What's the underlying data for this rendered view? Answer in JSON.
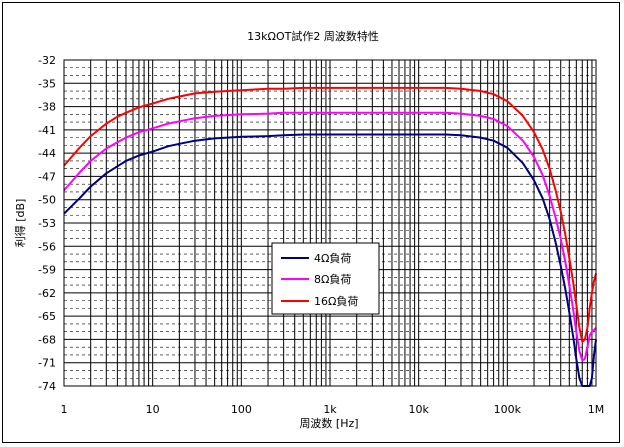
{
  "chart_data": {
    "type": "line",
    "title": "13kΩOT試作2 周波数特性",
    "xlabel": "周波数 [Hz]",
    "ylabel": "利得 [dB]",
    "xscale": "log",
    "xlim": [
      1,
      1000000
    ],
    "ylim": [
      -74,
      -32
    ],
    "y_ticks": [
      -32,
      -35,
      -38,
      -41,
      -44,
      -47,
      -50,
      -53,
      -56,
      -59,
      -62,
      -65,
      -68,
      -71,
      -74
    ],
    "y_tick_labels": [
      "-32",
      "-35",
      "-38",
      "-41",
      "-44",
      "-47",
      "-50",
      "-53",
      "-56",
      "-59",
      "-62",
      "-65",
      "-68",
      "-71",
      "-74"
    ],
    "x_ticks": [
      1,
      10,
      100,
      1000,
      10000,
      100000,
      1000000
    ],
    "x_tick_labels": [
      "1",
      "10",
      "100",
      "1k",
      "10k",
      "100k",
      "1M"
    ],
    "grid": true,
    "legend_position": "center",
    "series": [
      {
        "name": "4Ω負荷",
        "color": "#000080",
        "x": [
          1,
          1.5,
          2,
          3,
          4,
          5,
          7,
          10,
          15,
          20,
          30,
          50,
          70,
          100,
          200,
          300,
          500,
          1000,
          3000,
          10000,
          20000,
          30000,
          50000,
          70000,
          100000,
          150000,
          200000,
          250000,
          300000,
          350000,
          400000,
          450000,
          500000,
          550000,
          600000,
          650000,
          700000,
          750000,
          800000,
          850000,
          900000,
          950000,
          1000000
        ],
        "y": [
          -51.8,
          -49.8,
          -48.3,
          -46.6,
          -45.7,
          -45.0,
          -44.3,
          -43.8,
          -43.1,
          -42.8,
          -42.4,
          -42.1,
          -42.0,
          -41.9,
          -41.8,
          -41.7,
          -41.6,
          -41.6,
          -41.6,
          -41.6,
          -41.6,
          -41.7,
          -42.0,
          -42.4,
          -43.3,
          -45.3,
          -47.5,
          -49.8,
          -52.5,
          -55.5,
          -58.5,
          -61.5,
          -64.5,
          -67.5,
          -70.5,
          -73.0,
          -74.0,
          -74.0,
          -74.0,
          -74.0,
          -73.0,
          -70.0,
          -68.0
        ]
      },
      {
        "name": "8Ω負荷",
        "color": "#ff00ff",
        "x": [
          1,
          1.5,
          2,
          3,
          4,
          5,
          7,
          10,
          15,
          20,
          30,
          50,
          70,
          100,
          200,
          300,
          500,
          1000,
          3000,
          10000,
          20000,
          30000,
          50000,
          70000,
          100000,
          150000,
          200000,
          250000,
          300000,
          350000,
          400000,
          450000,
          500000,
          550000,
          600000,
          650000,
          700000,
          750000,
          800000,
          850000,
          900000,
          950000,
          1000000
        ],
        "y": [
          -48.8,
          -46.5,
          -45.0,
          -43.4,
          -42.6,
          -42.0,
          -41.3,
          -40.8,
          -40.2,
          -39.9,
          -39.5,
          -39.2,
          -39.1,
          -39.0,
          -38.9,
          -38.8,
          -38.8,
          -38.8,
          -38.8,
          -38.8,
          -38.8,
          -38.9,
          -39.2,
          -39.6,
          -40.5,
          -42.4,
          -44.5,
          -46.8,
          -49.5,
          -52.3,
          -55.0,
          -58.0,
          -61.0,
          -64.0,
          -67.0,
          -69.5,
          -70.7,
          -70.5,
          -69.0,
          -67.5,
          -67.0,
          -66.8,
          -66.5
        ]
      },
      {
        "name": "16Ω負荷",
        "color": "#ff0000",
        "x": [
          1,
          1.5,
          2,
          3,
          4,
          5,
          7,
          10,
          15,
          20,
          30,
          50,
          70,
          100,
          200,
          300,
          500,
          1000,
          3000,
          10000,
          20000,
          30000,
          50000,
          70000,
          100000,
          150000,
          200000,
          250000,
          300000,
          350000,
          400000,
          450000,
          500000,
          550000,
          600000,
          650000,
          700000,
          750000,
          800000,
          850000,
          900000,
          950000,
          1000000
        ],
        "y": [
          -45.6,
          -43.3,
          -41.8,
          -40.2,
          -39.3,
          -38.8,
          -38.1,
          -37.6,
          -37.0,
          -36.7,
          -36.3,
          -36.1,
          -36.0,
          -35.9,
          -35.7,
          -35.7,
          -35.6,
          -35.6,
          -35.6,
          -35.6,
          -35.6,
          -35.7,
          -36.0,
          -36.4,
          -37.3,
          -39.2,
          -41.3,
          -43.5,
          -46.0,
          -48.8,
          -51.5,
          -54.5,
          -57.5,
          -60.5,
          -63.5,
          -66.5,
          -68.3,
          -68.0,
          -66.5,
          -64.0,
          -62.0,
          -60.5,
          -59.5
        ]
      }
    ]
  }
}
